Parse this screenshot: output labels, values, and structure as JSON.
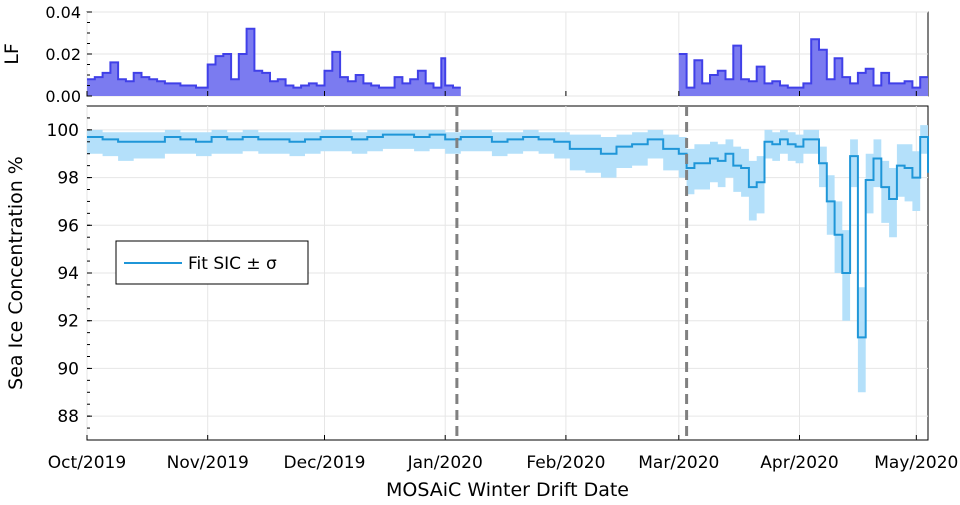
{
  "colors": {
    "lf_fill": "#7b7bf0",
    "lf_line": "#4040e8",
    "sic_line": "#1f96d8",
    "sic_band": "#b4e0fa",
    "vline": "#808080",
    "grid": "#e6e6e6"
  },
  "chart_data": [
    {
      "type": "area",
      "ylabel": "LF",
      "ylim": [
        0,
        0.04
      ],
      "yticks": [
        "0.00",
        "0.02",
        "0.04"
      ],
      "yvalues": [
        0,
        0.02,
        0.04
      ],
      "xlim": [
        "2019-10-01",
        "2020-05-04"
      ],
      "grid": true,
      "series": [
        {
          "segments": [
            {
              "x": [
                "2019-10-01",
                "2019-10-03",
                "2019-10-05",
                "2019-10-07",
                "2019-10-09",
                "2019-10-11",
                "2019-10-13",
                "2019-10-15",
                "2019-10-17",
                "2019-10-19",
                "2019-10-21",
                "2019-10-23",
                "2019-10-25",
                "2019-10-27",
                "2019-10-29",
                "2019-10-31",
                "2019-11-01",
                "2019-11-03",
                "2019-11-05",
                "2019-11-07",
                "2019-11-09",
                "2019-11-11",
                "2019-11-13",
                "2019-11-15",
                "2019-11-17",
                "2019-11-19",
                "2019-11-21",
                "2019-11-23",
                "2019-11-25",
                "2019-11-27",
                "2019-11-29",
                "2019-12-01",
                "2019-12-03",
                "2019-12-05",
                "2019-12-07",
                "2019-12-09",
                "2019-12-11",
                "2019-12-13",
                "2019-12-15",
                "2019-12-17",
                "2019-12-19",
                "2019-12-21",
                "2019-12-23",
                "2019-12-25",
                "2019-12-27",
                "2019-12-29",
                "2019-12-31",
                "2020-01-01",
                "2020-01-03"
              ],
              "values": [
                0.008,
                0.009,
                0.011,
                0.016,
                0.008,
                0.007,
                0.011,
                0.009,
                0.008,
                0.007,
                0.006,
                0.006,
                0.005,
                0.005,
                0.004,
                0.004,
                0.015,
                0.019,
                0.02,
                0.008,
                0.02,
                0.032,
                0.012,
                0.011,
                0.007,
                0.008,
                0.005,
                0.004,
                0.005,
                0.006,
                0.005,
                0.012,
                0.021,
                0.009,
                0.007,
                0.01,
                0.006,
                0.005,
                0.004,
                0.004,
                0.009,
                0.006,
                0.008,
                0.012,
                0.006,
                0.004,
                0.018,
                0.005,
                0.004
              ]
            },
            {
              "x": [
                "2020-03-01",
                "2020-03-03",
                "2020-03-05",
                "2020-03-07",
                "2020-03-09",
                "2020-03-11",
                "2020-03-13",
                "2020-03-15",
                "2020-03-17",
                "2020-03-19",
                "2020-03-21",
                "2020-03-23",
                "2020-03-25",
                "2020-03-27",
                "2020-03-29",
                "2020-03-31",
                "2020-04-02",
                "2020-04-04",
                "2020-04-06",
                "2020-04-08",
                "2020-04-10",
                "2020-04-12",
                "2020-04-14",
                "2020-04-16",
                "2020-04-18",
                "2020-04-20",
                "2020-04-22",
                "2020-04-24",
                "2020-04-26",
                "2020-04-28",
                "2020-04-30",
                "2020-05-02"
              ],
              "values": [
                0.02,
                0.004,
                0.017,
                0.006,
                0.01,
                0.012,
                0.008,
                0.024,
                0.008,
                0.007,
                0.014,
                0.006,
                0.007,
                0.005,
                0.004,
                0.004,
                0.006,
                0.027,
                0.022,
                0.008,
                0.018,
                0.009,
                0.006,
                0.011,
                0.013,
                0.005,
                0.011,
                0.006,
                0.006,
                0.007,
                0.004,
                0.009
              ]
            }
          ]
        }
      ]
    },
    {
      "type": "line",
      "xlabel": "MOSAiC Winter Drift Date",
      "ylabel": "Sea Ice Concentration %",
      "ylim": [
        87,
        101
      ],
      "yticks": [
        88,
        90,
        92,
        94,
        96,
        98,
        100
      ],
      "xlim": [
        "2019-10-01",
        "2020-05-04"
      ],
      "xticks": [
        {
          "label": "Oct/2019",
          "date": "2019-10-01"
        },
        {
          "label": "Nov/2019",
          "date": "2019-11-01"
        },
        {
          "label": "Dec/2019",
          "date": "2019-12-01"
        },
        {
          "label": "Jan/2020",
          "date": "2020-01-01"
        },
        {
          "label": "Feb/2020",
          "date": "2020-02-01"
        },
        {
          "label": "Mar/2020",
          "date": "2020-03-01"
        },
        {
          "label": "Apr/2020",
          "date": "2020-04-01"
        },
        {
          "label": "May/2020",
          "date": "2020-05-01"
        }
      ],
      "vlines": [
        "2020-01-04",
        "2020-03-03"
      ],
      "legend": {
        "position": "left-middle",
        "entries": [
          "Fit SIC ± σ"
        ]
      },
      "grid": true,
      "series": [
        {
          "name": "Fit SIC ± σ",
          "x": [
            "2019-10-01",
            "2019-10-05",
            "2019-10-09",
            "2019-10-13",
            "2019-10-17",
            "2019-10-21",
            "2019-10-25",
            "2019-10-29",
            "2019-11-02",
            "2019-11-06",
            "2019-11-10",
            "2019-11-14",
            "2019-11-18",
            "2019-11-22",
            "2019-11-26",
            "2019-11-30",
            "2019-12-04",
            "2019-12-08",
            "2019-12-12",
            "2019-12-16",
            "2019-12-20",
            "2019-12-24",
            "2019-12-28",
            "2020-01-01",
            "2020-01-05",
            "2020-01-09",
            "2020-01-13",
            "2020-01-17",
            "2020-01-21",
            "2020-01-25",
            "2020-01-29",
            "2020-02-02",
            "2020-02-06",
            "2020-02-10",
            "2020-02-14",
            "2020-02-18",
            "2020-02-22",
            "2020-02-26",
            "2020-03-01",
            "2020-03-03",
            "2020-03-05",
            "2020-03-07",
            "2020-03-09",
            "2020-03-11",
            "2020-03-13",
            "2020-03-15",
            "2020-03-17",
            "2020-03-19",
            "2020-03-21",
            "2020-03-23",
            "2020-03-25",
            "2020-03-27",
            "2020-03-29",
            "2020-03-31",
            "2020-04-02",
            "2020-04-04",
            "2020-04-06",
            "2020-04-08",
            "2020-04-10",
            "2020-04-12",
            "2020-04-14",
            "2020-04-16",
            "2020-04-18",
            "2020-04-20",
            "2020-04-22",
            "2020-04-24",
            "2020-04-26",
            "2020-04-28",
            "2020-04-30",
            "2020-05-02",
            "2020-05-04"
          ],
          "values": [
            99.7,
            99.6,
            99.5,
            99.5,
            99.5,
            99.7,
            99.6,
            99.5,
            99.7,
            99.6,
            99.7,
            99.6,
            99.6,
            99.5,
            99.6,
            99.7,
            99.7,
            99.6,
            99.7,
            99.8,
            99.8,
            99.7,
            99.8,
            99.6,
            99.7,
            99.7,
            99.5,
            99.6,
            99.7,
            99.6,
            99.5,
            99.2,
            99.2,
            99.0,
            99.3,
            99.4,
            99.6,
            99.2,
            99.0,
            98.4,
            98.6,
            98.6,
            98.8,
            98.7,
            99.0,
            98.5,
            98.4,
            97.6,
            97.8,
            99.5,
            99.4,
            99.6,
            99.4,
            99.3,
            99.6,
            99.6,
            98.6,
            97.0,
            95.6,
            94.0,
            98.9,
            91.3,
            97.9,
            98.8,
            97.6,
            97.1,
            98.5,
            98.4,
            98.0,
            99.7,
            98.2
          ],
          "sigma_lower": [
            99.0,
            98.9,
            98.7,
            98.8,
            98.8,
            99.0,
            99.0,
            98.9,
            99.0,
            99.0,
            99.1,
            99.0,
            99.0,
            98.9,
            99.0,
            99.1,
            99.1,
            99.0,
            99.1,
            99.2,
            99.2,
            99.1,
            99.2,
            99.0,
            99.1,
            99.1,
            98.9,
            99.0,
            99.1,
            99.0,
            98.8,
            98.3,
            98.2,
            98.0,
            98.4,
            98.5,
            98.8,
            98.3,
            98.0,
            97.3,
            97.5,
            97.5,
            97.8,
            97.6,
            98.0,
            97.4,
            97.2,
            96.2,
            96.5,
            98.8,
            98.7,
            99.0,
            98.7,
            98.6,
            99.0,
            99.0,
            97.6,
            95.6,
            94.0,
            92.0,
            97.6,
            89.0,
            96.5,
            97.6,
            96.1,
            95.5,
            97.2,
            97.0,
            96.6,
            99.0,
            96.9
          ],
          "sigma_upper": [
            100.0,
            99.9,
            99.9,
            99.9,
            99.9,
            100.0,
            99.9,
            99.9,
            100.0,
            99.9,
            100.0,
            99.9,
            99.9,
            99.9,
            99.9,
            100.0,
            100.0,
            99.9,
            100.0,
            100.0,
            100.0,
            100.0,
            100.0,
            99.9,
            100.0,
            100.0,
            99.9,
            99.9,
            100.0,
            99.9,
            99.9,
            99.8,
            99.8,
            99.7,
            99.8,
            99.9,
            100.0,
            99.8,
            99.7,
            99.2,
            99.4,
            99.4,
            99.5,
            99.4,
            99.6,
            99.3,
            99.2,
            98.7,
            98.9,
            100.0,
            99.9,
            100.0,
            99.9,
            99.8,
            100.0,
            100.0,
            99.3,
            98.1,
            97.0,
            95.8,
            99.6,
            93.4,
            99.0,
            99.6,
            98.7,
            98.4,
            99.4,
            99.4,
            99.1,
            100.2,
            99.2
          ]
        }
      ]
    }
  ]
}
